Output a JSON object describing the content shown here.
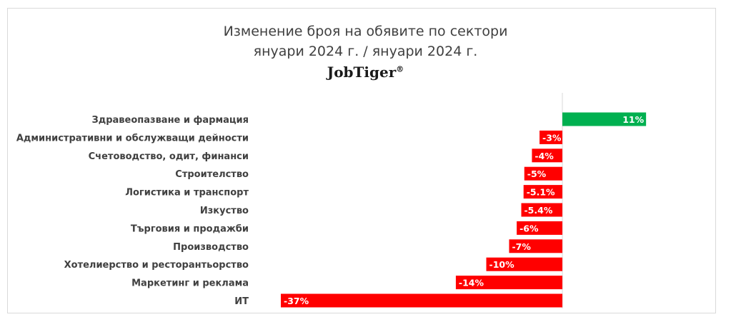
{
  "header": {
    "title_line1": "Изменение броя на обявите по сектори",
    "title_line2": "януари 2024 г. / януари 2024 г.",
    "brand": "JobTiger",
    "brand_mark": "®"
  },
  "colors": {
    "positive": "#00b050",
    "negative": "#ff0000",
    "label_text": "#404040",
    "axis": "#d9d9d9"
  },
  "chart_data": {
    "type": "bar",
    "orientation": "horizontal",
    "categories": [
      "Здравеопазване и фармация",
      "Административни и обслужващи дейности",
      "Счетоводство, одит, финанси",
      "Строителство",
      "Логистика и транспорт",
      "Изкуство",
      "Търговия и продажби",
      "Производство",
      "Хотелиерство и ресторантьорство",
      "Маркетинг и реклама",
      "ИТ"
    ],
    "values": [
      11,
      -3,
      -4,
      -5,
      -5.1,
      -5.4,
      -6,
      -7,
      -10,
      -14,
      -37
    ],
    "data_labels": [
      "11%",
      "-3%",
      "-4%",
      "-5%",
      "-5.1%",
      "-5.4%",
      "-6%",
      "-7%",
      "-10%",
      "-14%",
      "-37%"
    ],
    "xlim": [
      -37,
      11
    ],
    "grid": false,
    "legend": "none"
  }
}
